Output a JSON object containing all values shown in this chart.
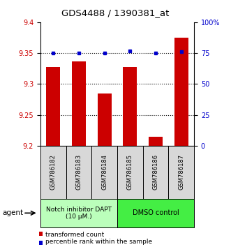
{
  "title": "GDS4488 / 1390381_at",
  "samples": [
    "GSM786182",
    "GSM786183",
    "GSM786184",
    "GSM786185",
    "GSM786186",
    "GSM786187"
  ],
  "bar_values": [
    9.327,
    9.337,
    9.285,
    9.327,
    9.215,
    9.375
  ],
  "percentile_values": [
    75,
    75,
    75,
    77,
    75,
    76
  ],
  "ylim_left": [
    9.2,
    9.4
  ],
  "ylim_right": [
    0,
    100
  ],
  "yticks_left": [
    9.2,
    9.25,
    9.3,
    9.35,
    9.4
  ],
  "yticks_right": [
    0,
    25,
    50,
    75,
    100
  ],
  "bar_color": "#cc0000",
  "dot_color": "#0000cc",
  "group1_label": "Notch inhibitor DAPT\n(10 μM.)",
  "group2_label": "DMSO control",
  "group1_color": "#bbffbb",
  "group2_color": "#44ee44",
  "agent_label": "agent",
  "legend_bar_label": "transformed count",
  "legend_dot_label": "percentile rank within the sample",
  "left_tick_color": "#cc0000",
  "right_tick_color": "#0000cc",
  "bar_width": 0.55,
  "ybaseline": 9.2,
  "grid_lines": [
    9.25,
    9.3,
    9.35
  ],
  "sample_box_color": "#d8d8d8"
}
